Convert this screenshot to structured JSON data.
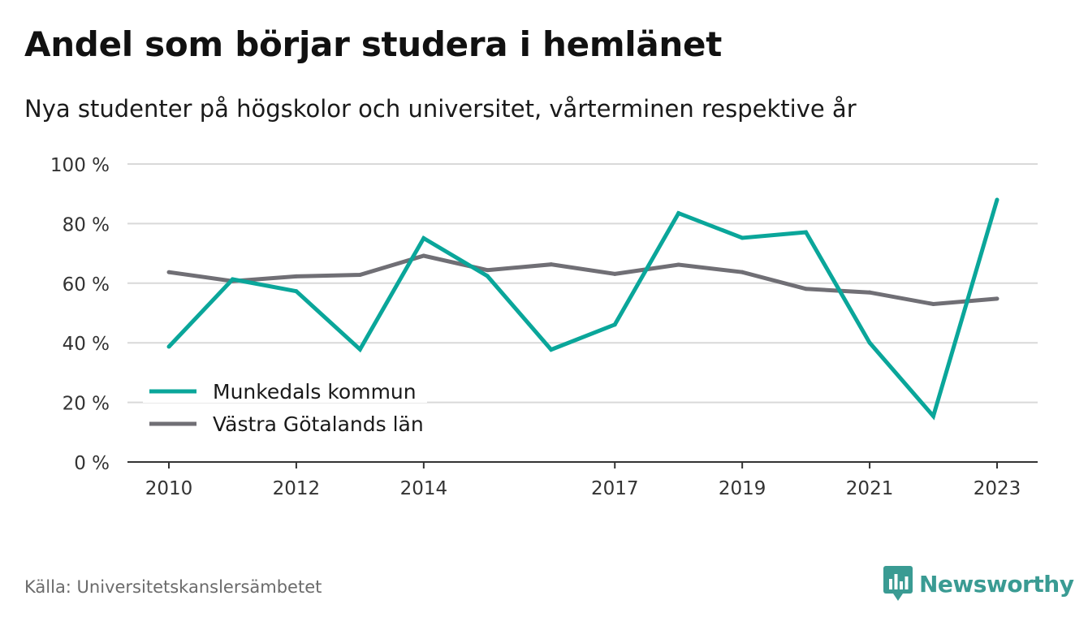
{
  "header": {
    "title": "Andel som börjar studera i hemlänet",
    "subtitle": "Nya studenter på högskolor och universitet, vårterminen respektive år"
  },
  "footer": {
    "source": "Källa: Universitetskanslersämbetet",
    "brand": "Newsworthy",
    "brand_icon": "newsworthy-bar-chart-logo-icon"
  },
  "colors": {
    "munkedal": "#0aa69a",
    "vastra_gotaland": "#706f75",
    "grid": "#d9d9d9",
    "axis": "#333333",
    "brand": "#3a9b93"
  },
  "chart_data": {
    "type": "line",
    "x": [
      2010,
      2011,
      2012,
      2013,
      2014,
      2015,
      2016,
      2017,
      2018,
      2019,
      2020,
      2021,
      2022,
      2023
    ],
    "x_tick_values": [
      2010,
      2012,
      2014,
      2017,
      2019,
      2021,
      2023
    ],
    "x_tick_labels": [
      "2010",
      "2012",
      "2014",
      "2017",
      "2019",
      "2021",
      "2023"
    ],
    "y_tick_values": [
      0,
      20,
      40,
      60,
      80,
      100
    ],
    "y_tick_labels": [
      "0 %",
      "20 %",
      "40 %",
      "60 %",
      "80 %",
      "100 %"
    ],
    "ylim": [
      0,
      100
    ],
    "grid": true,
    "legend_position": "bottom-left",
    "series": [
      {
        "name": "Munkedals kommun",
        "color": "#0aa69a",
        "values": [
          38.7,
          61.3,
          57.3,
          37.8,
          75.1,
          62.4,
          37.7,
          46.1,
          83.5,
          75.2,
          77.1,
          40.0,
          15.4,
          88.0
        ]
      },
      {
        "name": "Västra Götalands län",
        "color": "#706f75",
        "values": [
          63.7,
          60.7,
          62.3,
          62.8,
          69.2,
          64.4,
          66.3,
          63.1,
          66.2,
          63.7,
          58.1,
          56.9,
          53.0,
          54.8
        ]
      }
    ]
  }
}
